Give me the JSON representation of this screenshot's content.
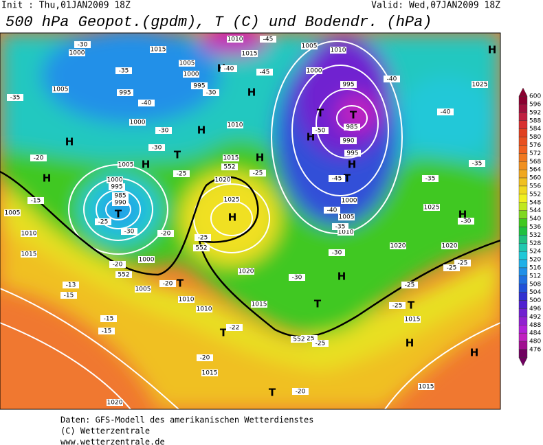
{
  "header": {
    "init": "Init : Thu,01JAN2009 18Z",
    "valid": "Valid: Wed,07JAN2009 18Z",
    "title": "500 hPa Geopot.(gpdm), T (C) und Bodendr. (hPa)"
  },
  "footer": [
    "Daten: GFS-Modell des amerikanischen Wetterdienstes",
    "(C) Wetterzentrale",
    "www.wetterzentrale.de"
  ],
  "colorbar": {
    "values": [
      600,
      596,
      592,
      588,
      584,
      580,
      576,
      572,
      568,
      564,
      560,
      556,
      552,
      548,
      544,
      540,
      536,
      532,
      528,
      524,
      520,
      516,
      512,
      508,
      504,
      500,
      496,
      492,
      488,
      484,
      480,
      476
    ],
    "colors": [
      "#8b0030",
      "#a0103c",
      "#c02040",
      "#d83030",
      "#e04020",
      "#e85020",
      "#f06020",
      "#f07820",
      "#f09020",
      "#f0a820",
      "#f0c020",
      "#f0d820",
      "#f0f020",
      "#c0e820",
      "#80d820",
      "#40c820",
      "#20c040",
      "#20c080",
      "#20c8b0",
      "#20c8d8",
      "#20b0e8",
      "#2090e8",
      "#2070e0",
      "#2050d8",
      "#3030d0",
      "#5020d0",
      "#7020d0",
      "#9020d0",
      "#b020d8",
      "#c020c0",
      "#a01090",
      "#700060"
    ]
  },
  "map_labels": [
    "H",
    "H",
    "H",
    "H",
    "H",
    "H",
    "H",
    "H",
    "H",
    "H",
    "H",
    "H",
    "H",
    "H",
    "H",
    "T",
    "T",
    "T",
    "T",
    "T",
    "T",
    "T",
    "T",
    "T",
    "T",
    "1015",
    "1000",
    "1005",
    "1000",
    "995",
    "995",
    "1005",
    "1000",
    "1010",
    "1015",
    "1005",
    "1020",
    "1025",
    "1000",
    "995",
    "990",
    "985",
    "1005",
    "1010",
    "1015",
    "1000",
    "1020",
    "1005",
    "1010",
    "1010",
    "1015",
    "1015",
    "1020",
    "1015",
    "1015",
    "1020",
    "1020",
    "1025",
    "1025",
    "1010",
    "1005",
    "1000",
    "995",
    "985",
    "990",
    "995",
    "1000",
    "1005",
    "1010",
    "1015",
    "1010",
    "-30",
    "-35",
    "-35",
    "-40",
    "-30",
    "-30",
    "-30",
    "-25",
    "-20",
    "-25",
    "-15",
    "-25",
    "-30",
    "-20",
    "-25",
    "-20",
    "-20",
    "-13",
    "-15",
    "-15",
    "-15",
    "-22",
    "-25",
    "-20",
    "-20",
    "-25",
    "-25",
    "-25",
    "-25",
    "-30",
    "-30",
    "-40",
    "-45",
    "-45",
    "-40",
    "-45",
    "-50",
    "-40",
    "-40",
    "-35",
    "-35",
    "-30",
    "-35",
    "-25",
    "552",
    "552",
    "552",
    "552"
  ]
}
